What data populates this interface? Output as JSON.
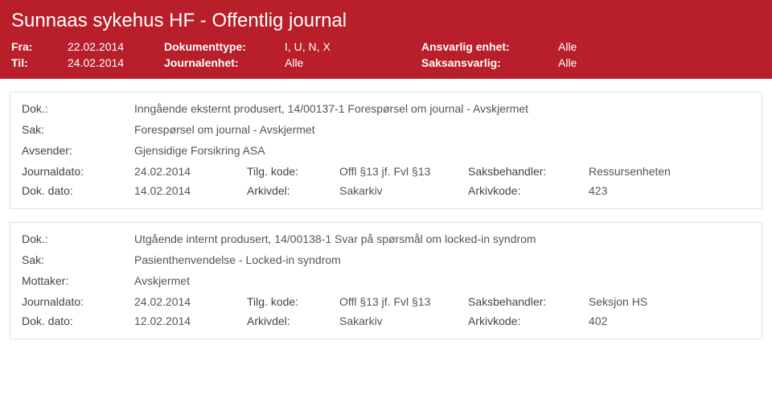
{
  "header": {
    "title": "Sunnaas sykehus HF - Offentlig journal",
    "fra_label": "Fra:",
    "fra_value": "22.02.2014",
    "til_label": "Til:",
    "til_value": "24.02.2014",
    "dokumenttype_label": "Dokumenttype:",
    "dokumenttype_value": "I, U, N, X",
    "journalenhet_label": "Journalenhet:",
    "journalenhet_value": "Alle",
    "ansvarlig_enhet_label": "Ansvarlig enhet:",
    "ansvarlig_enhet_value": "Alle",
    "saksansvarlig_label": "Saksansvarlig:",
    "saksansvarlig_value": "Alle"
  },
  "entries": [
    {
      "dok_label": "Dok.:",
      "dok_value": "Inngående eksternt produsert, 14/00137-1 Forespørsel om journal - Avskjermet",
      "sak_label": "Sak:",
      "sak_value": "Forespørsel om journal - Avskjermet",
      "party_label": "Avsender:",
      "party_value": "Gjensidige Forsikring ASA",
      "jdato_label": "Journaldato:",
      "jdato_value": "24.02.2014",
      "tilg_label": "Tilg. kode:",
      "tilg_value": "Offl §13 jf. Fvl §13",
      "saksb_label": "Saksbehandler:",
      "saksb_value": "Ressursenheten",
      "ddato_label": "Dok. dato:",
      "ddato_value": "14.02.2014",
      "arkivdel_label": "Arkivdel:",
      "arkivdel_value": "Sakarkiv",
      "arkivkode_label": "Arkivkode:",
      "arkivkode_value": "423"
    },
    {
      "dok_label": "Dok.:",
      "dok_value": "Utgående internt produsert, 14/00138-1 Svar på spørsmål om locked-in syndrom",
      "sak_label": "Sak:",
      "sak_value": "Pasienthenvendelse - Locked-in syndrom",
      "party_label": "Mottaker:",
      "party_value": "Avskjermet",
      "jdato_label": "Journaldato:",
      "jdato_value": "24.02.2014",
      "tilg_label": "Tilg. kode:",
      "tilg_value": "Offl §13 jf. Fvl §13",
      "saksb_label": "Saksbehandler:",
      "saksb_value": "Seksjon HS",
      "ddato_label": "Dok. dato:",
      "ddato_value": "12.02.2014",
      "arkivdel_label": "Arkivdel:",
      "arkivdel_value": "Sakarkiv",
      "arkivkode_label": "Arkivkode:",
      "arkivkode_value": "402"
    }
  ]
}
